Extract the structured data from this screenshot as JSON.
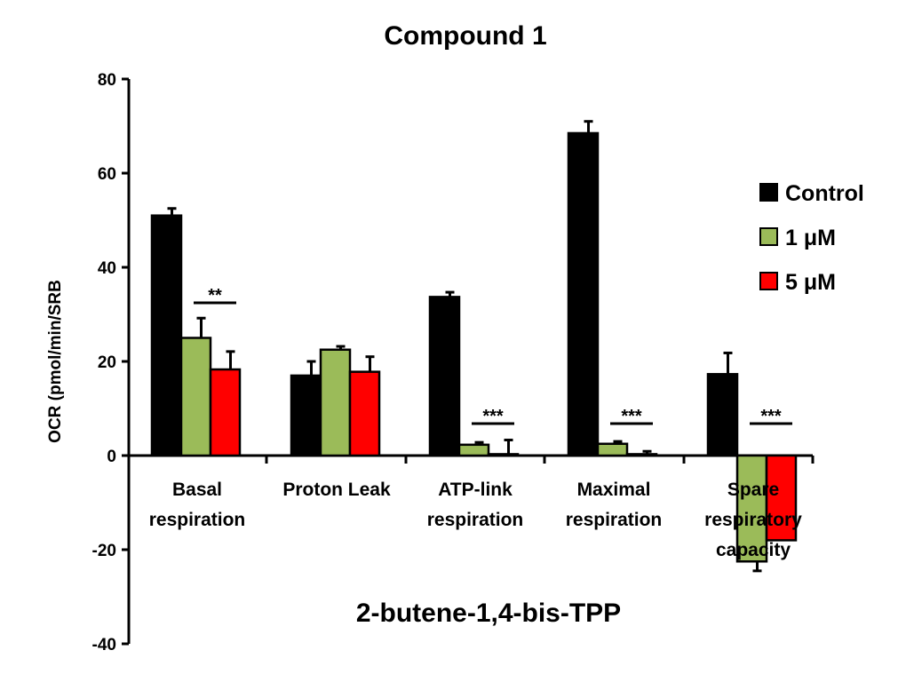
{
  "chart_data": {
    "type": "bar",
    "title": "Compound 1",
    "subtitle": "2-butene-1,4-bis-TPP",
    "ylabel": "OCR (pmol/min/SRB",
    "xlabel": "",
    "ylim": [
      -40,
      80
    ],
    "yticks": [
      "80",
      "60",
      "40",
      "20",
      "0",
      "-20",
      "-40"
    ],
    "categories": [
      [
        "Basal",
        "respiration"
      ],
      [
        "Proton Leak"
      ],
      [
        "ATP-link",
        "respiration"
      ],
      [
        "Maximal",
        "respiration"
      ],
      [
        "Spare",
        "respiratory",
        "capacity"
      ]
    ],
    "series": [
      {
        "name": "Control",
        "color": "#000000",
        "values": [
          51,
          17,
          33.7,
          68.5,
          17.3
        ],
        "errors": [
          1.5,
          3,
          1,
          2.5,
          4.5
        ]
      },
      {
        "name": "1 μM",
        "color": "#9BBB59",
        "values": [
          25,
          22.5,
          2.3,
          2.5,
          -22.5
        ],
        "errors": [
          4.2,
          0.7,
          0.5,
          0.5,
          2
        ]
      },
      {
        "name": "5 μM",
        "color": "#FF0000",
        "values": [
          18.3,
          17.8,
          0.3,
          0.3,
          -18
        ],
        "errors": [
          3.8,
          3.2,
          3,
          0.6,
          0
        ]
      }
    ],
    "significance": [
      "**",
      "",
      "***",
      "***",
      "***"
    ],
    "legend_position": "right",
    "grid": false
  }
}
